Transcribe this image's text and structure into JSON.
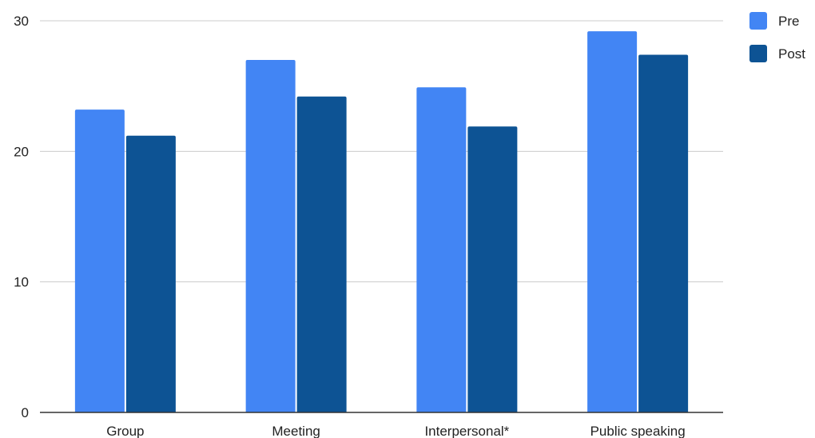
{
  "chart_data": {
    "type": "bar",
    "title": "",
    "xlabel": "",
    "ylabel": "",
    "categories": [
      "Group",
      "Meeting",
      "Interpersonal*",
      "Public speaking"
    ],
    "series": [
      {
        "name": "Pre",
        "color": "#4285f4",
        "values": [
          23.2,
          27.0,
          24.9,
          29.2
        ]
      },
      {
        "name": "Post",
        "color": "#0d5394",
        "values": [
          21.2,
          24.2,
          21.9,
          27.4
        ]
      }
    ],
    "ylim": [
      0,
      30
    ],
    "yticks": [
      0,
      10,
      20,
      30
    ],
    "grid": true,
    "legend_position": "right"
  }
}
